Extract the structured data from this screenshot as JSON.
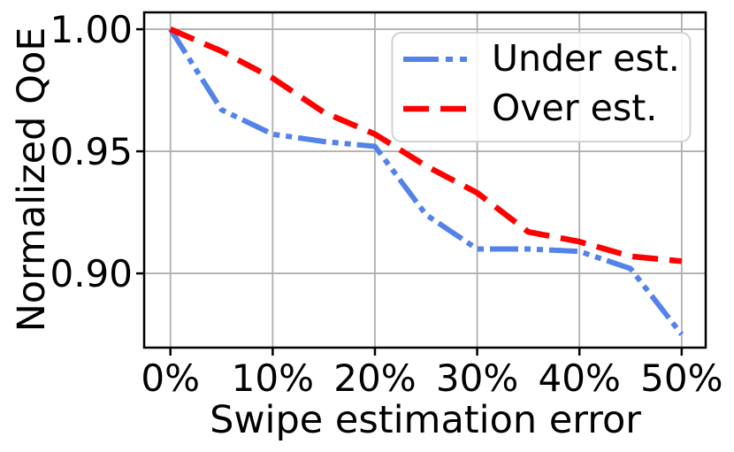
{
  "chart_data": {
    "type": "line",
    "title": "",
    "xlabel": "Swipe estimation error",
    "ylabel": "Normalized QoE",
    "x": [
      0,
      5,
      10,
      15,
      20,
      25,
      30,
      35,
      40,
      45,
      50
    ],
    "x_unit": "%",
    "series": [
      {
        "name": "Under est.",
        "color": "#5383e8",
        "linestyle": "dash-dot-dot",
        "values": [
          1.0,
          0.967,
          0.957,
          0.954,
          0.952,
          0.924,
          0.91,
          0.91,
          0.909,
          0.902,
          0.875
        ]
      },
      {
        "name": "Over est.",
        "color": "#ff0000",
        "linestyle": "dashed",
        "values": [
          1.0,
          0.991,
          0.98,
          0.966,
          0.957,
          0.944,
          0.933,
          0.917,
          0.913,
          0.907,
          0.905
        ]
      }
    ],
    "xticks": {
      "values": [
        0,
        10,
        20,
        30,
        40,
        50
      ],
      "labels": [
        "0%",
        "10%",
        "20%",
        "30%",
        "40%",
        "50%"
      ]
    },
    "yticks": {
      "values": [
        0.9,
        0.95,
        1.0
      ],
      "labels": [
        "0.90",
        "0.95",
        "1.00"
      ]
    },
    "xlim": [
      -2.57,
      52.35
    ],
    "ylim": [
      0.8696,
      1.0069
    ],
    "grid": true,
    "legend": {
      "position": "upper right",
      "entries": [
        "Under est.",
        "Over est."
      ]
    },
    "colors": {
      "grid": "#b0b0b0",
      "spine": "#000000",
      "text": "#000000",
      "legend_border": "#d2d2d2",
      "background": "#ffffff"
    }
  }
}
